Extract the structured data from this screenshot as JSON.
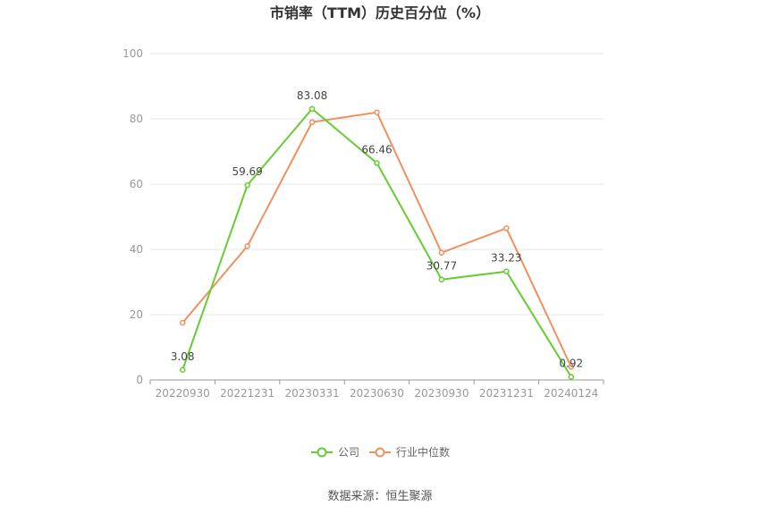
{
  "chart_data": {
    "type": "line",
    "title": "市销率（TTM）历史百分位（%）",
    "x": [
      "20220930",
      "20221231",
      "20230331",
      "20230630",
      "20230930",
      "20231231",
      "20240124"
    ],
    "ylim": [
      0,
      100
    ],
    "yticks": [
      0,
      20,
      40,
      60,
      80,
      100
    ],
    "grid": true,
    "legend_position": "bottom",
    "series": [
      {
        "name": "公司",
        "color": "#66cc33",
        "values": [
          3.08,
          59.69,
          83.08,
          66.46,
          30.77,
          33.23,
          0.92
        ],
        "labels": [
          "3.08",
          "59.69",
          "83.08",
          "66.46",
          "30.77",
          "33.23",
          "0.92"
        ]
      },
      {
        "name": "行业中位数",
        "color": "#f0905f",
        "values": [
          17.5,
          41.0,
          79.0,
          82.0,
          39.0,
          46.5,
          4.0
        ]
      }
    ],
    "source": "数据来源：恒生聚源"
  }
}
